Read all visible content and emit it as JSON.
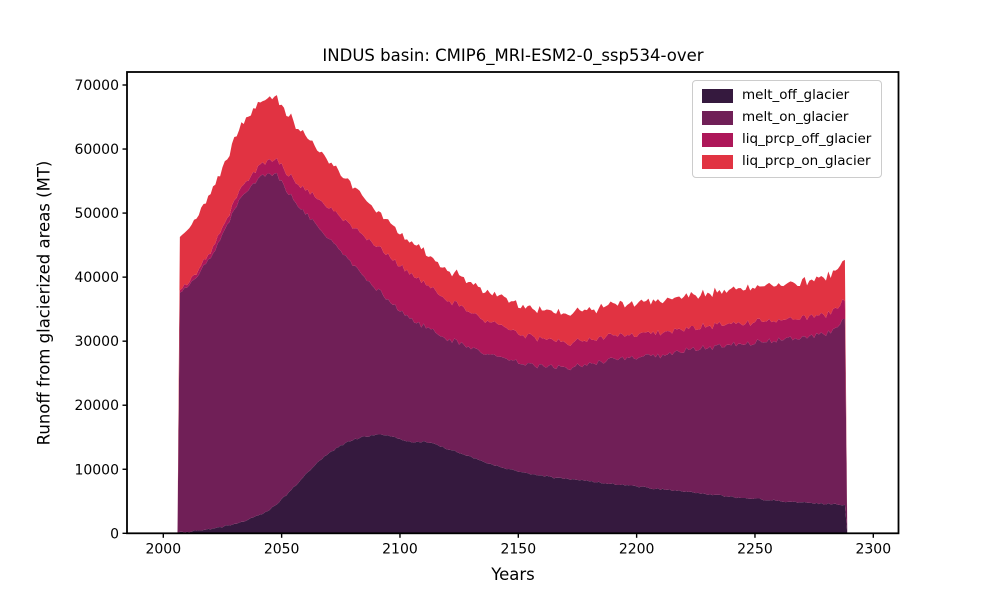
{
  "title": "INDUS basin: CMIP6_MRI-ESM2-0_ssp534-over",
  "axes": {
    "xlabel": "Years",
    "ylabel": "Runoff from glacierized areas (MT)"
  },
  "chart_data": {
    "type": "area",
    "stacked": true,
    "grid": false,
    "legend_position": "upper right",
    "x_ticks": [
      2000,
      2050,
      2100,
      2150,
      2200,
      2250,
      2300
    ],
    "y_ticks": [
      0,
      10000,
      20000,
      30000,
      40000,
      50000,
      60000,
      70000
    ],
    "xlim": [
      1985.5,
      2310.5
    ],
    "ylim": [
      0,
      72000
    ],
    "x_range_data": [
      2007,
      2288
    ],
    "x": [
      2006,
      2007,
      2010,
      2015,
      2020,
      2025,
      2030,
      2035,
      2040,
      2044,
      2048,
      2052,
      2056,
      2060,
      2065,
      2070,
      2075,
      2080,
      2085,
      2090,
      2095,
      2100,
      2105,
      2110,
      2115,
      2120,
      2125,
      2130,
      2135,
      2140,
      2145,
      2150,
      2155,
      2160,
      2165,
      2170,
      2175,
      2180,
      2185,
      2190,
      2195,
      2200,
      2205,
      2210,
      2215,
      2220,
      2225,
      2230,
      2235,
      2240,
      2245,
      2250,
      2255,
      2260,
      2265,
      2270,
      2275,
      2280,
      2284,
      2288,
      2289
    ],
    "noise_amplitude": [
      120,
      400,
      220,
      380
    ],
    "series": [
      {
        "name": "melt_off_glacier",
        "color": "#35193e",
        "values": [
          0,
          150,
          250,
          400,
          650,
          1000,
          1400,
          2000,
          2700,
          3400,
          4600,
          6000,
          7500,
          9200,
          11000,
          12500,
          13700,
          14600,
          15100,
          15400,
          15300,
          14800,
          14100,
          14300,
          13900,
          13200,
          12600,
          11900,
          11200,
          10600,
          10100,
          9700,
          9300,
          9000,
          8700,
          8500,
          8300,
          8100,
          7900,
          7700,
          7500,
          7300,
          7100,
          6900,
          6700,
          6500,
          6300,
          6100,
          5900,
          5700,
          5500,
          5400,
          5200,
          5100,
          4900,
          4800,
          4700,
          4600,
          4500,
          4400,
          0
        ]
      },
      {
        "name": "melt_on_glacier",
        "color": "#701f57",
        "values": [
          0,
          37350,
          38250,
          40100,
          42350,
          45500,
          49100,
          51500,
          52600,
          52800,
          51400,
          47500,
          44300,
          40800,
          37000,
          33500,
          30300,
          27400,
          24900,
          22800,
          21200,
          20000,
          19300,
          18000,
          17400,
          17200,
          17100,
          17100,
          17100,
          17100,
          17100,
          17100,
          17100,
          17100,
          17200,
          17300,
          17800,
          18300,
          19000,
          19600,
          19600,
          20100,
          20500,
          20900,
          21400,
          22000,
          22500,
          22900,
          23300,
          23800,
          24200,
          24400,
          24800,
          25200,
          25600,
          25800,
          26100,
          26600,
          27400,
          29300,
          0
        ]
      },
      {
        "name": "liq_prcp_off_glacier",
        "color": "#ad1759",
        "values": [
          0,
          500,
          600,
          700,
          900,
          1100,
          1300,
          1600,
          1900,
          2100,
          2400,
          2800,
          3200,
          3700,
          4300,
          4900,
          5400,
          5900,
          6400,
          6700,
          6900,
          7000,
          6900,
          6700,
          6400,
          6100,
          5800,
          5500,
          5200,
          5000,
          4800,
          4600,
          4400,
          4300,
          4100,
          4000,
          3900,
          3800,
          3800,
          3700,
          3700,
          3600,
          3600,
          3500,
          3500,
          3400,
          3400,
          3300,
          3300,
          3300,
          3200,
          3200,
          3200,
          3100,
          3100,
          3100,
          3000,
          3000,
          3000,
          3000,
          0
        ]
      },
      {
        "name": "liq_prcp_on_glacier",
        "color": "#e13342",
        "values": [
          0,
          8300,
          8400,
          8700,
          9000,
          9300,
          9600,
          9800,
          9900,
          9900,
          9700,
          9300,
          8800,
          8300,
          7800,
          7300,
          6800,
          6400,
          6000,
          5700,
          5400,
          5200,
          5000,
          4900,
          4800,
          4700,
          4600,
          4600,
          4500,
          4500,
          4500,
          4500,
          4500,
          4500,
          4500,
          4500,
          4600,
          4600,
          4700,
          4800,
          4800,
          4900,
          4900,
          5000,
          5000,
          5100,
          5100,
          5200,
          5200,
          5300,
          5300,
          5400,
          5400,
          5500,
          5500,
          5600,
          5700,
          5800,
          6000,
          6200,
          0
        ]
      }
    ]
  }
}
